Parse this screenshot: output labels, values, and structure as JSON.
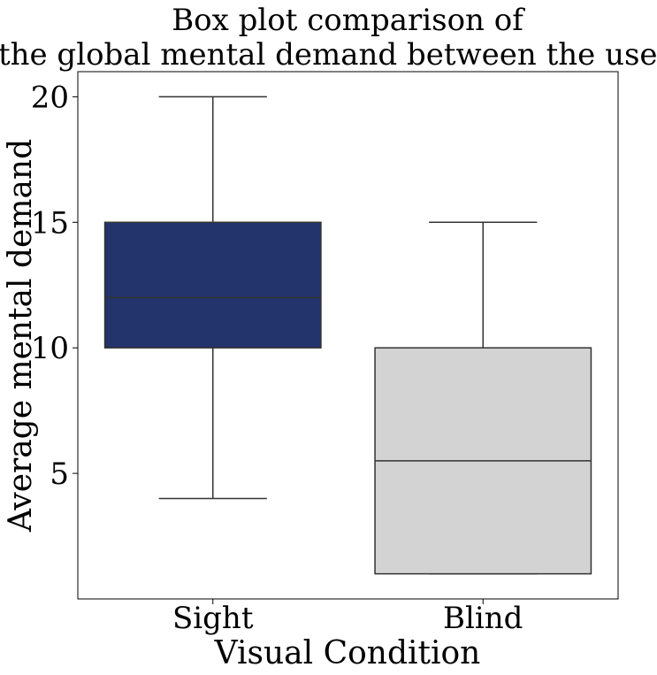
{
  "chart_data": {
    "type": "box",
    "title_lines": [
      "Box plot comparison of",
      "the global mental demand between the users."
    ],
    "xlabel": "Visual Condition",
    "ylabel": "Average mental demand",
    "ylim": [
      0,
      21
    ],
    "yticks": [
      5,
      10,
      15,
      20
    ],
    "grid": false,
    "categories": [
      "Sight",
      "Blind"
    ],
    "boxes": [
      {
        "category": "Sight",
        "whisker_low": 4,
        "q1": 10,
        "median": 12,
        "q3": 15,
        "whisker_high": 20,
        "color": "#22346b"
      },
      {
        "category": "Blind",
        "whisker_low": 1,
        "q1": 1,
        "median": 5.5,
        "q3": 10,
        "whisker_high": 15,
        "color": "#d3d3d3"
      }
    ]
  }
}
